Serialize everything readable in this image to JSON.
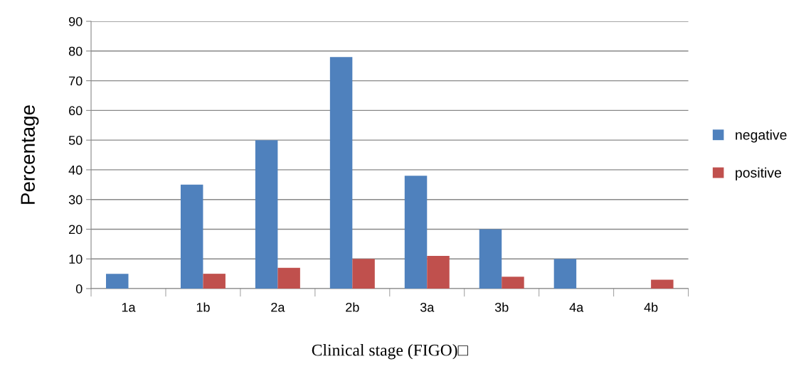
{
  "chart_data": {
    "type": "bar",
    "xlabel": "Clinical stage (FIGO)□",
    "ylabel": "Percentage",
    "categories": [
      "1a",
      "1b",
      "2a",
      "2b",
      "3a",
      "3b",
      "4a",
      "4b"
    ],
    "series": [
      {
        "name": "negative",
        "color": "#4f81bd",
        "values": [
          5,
          35,
          50,
          78,
          38,
          20,
          10,
          0
        ]
      },
      {
        "name": "positive",
        "color": "#c0504d",
        "values": [
          0,
          5,
          7,
          10,
          11,
          4,
          0,
          3
        ]
      }
    ],
    "ylim": [
      0,
      90
    ],
    "yticks": [
      0,
      10,
      20,
      30,
      40,
      50,
      60,
      70,
      80,
      90
    ],
    "grid": "y",
    "legend": "right"
  }
}
